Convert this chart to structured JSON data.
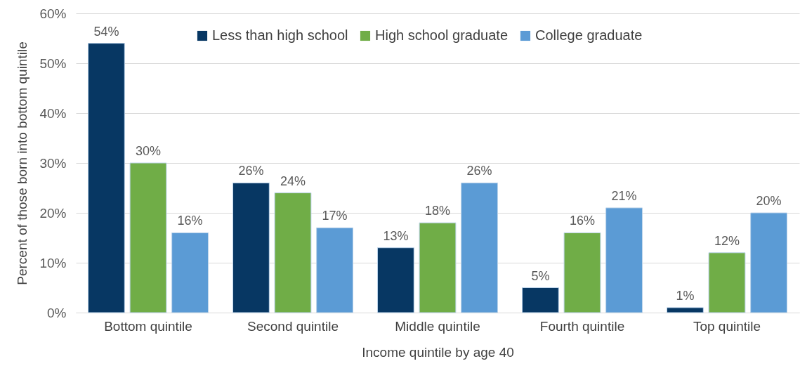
{
  "chart_data": {
    "type": "bar",
    "xlabel": "Income quintile by age 40",
    "ylabel": "Percent of those born into bottom quintile",
    "categories": [
      "Bottom quintile",
      "Second quintile",
      "Middle quintile",
      "Fourth quintile",
      "Top quintile"
    ],
    "series": [
      {
        "name": "Less than high school",
        "color": "#073763",
        "values": [
          54,
          26,
          13,
          5,
          1
        ],
        "value_labels": [
          "54%",
          "26%",
          "13%",
          "5%",
          "1%"
        ]
      },
      {
        "name": "High school graduate",
        "color": "#70ad47",
        "values": [
          30,
          24,
          18,
          16,
          12
        ],
        "value_labels": [
          "30%",
          "24%",
          "18%",
          "16%",
          "12%"
        ]
      },
      {
        "name": "College graduate",
        "color": "#5b9bd5",
        "values": [
          16,
          17,
          26,
          21,
          20
        ],
        "value_labels": [
          "16%",
          "17%",
          "26%",
          "21%",
          "20%"
        ]
      }
    ],
    "ylim": [
      0,
      60
    ],
    "yticks": [
      {
        "value": 0,
        "label": "0%"
      },
      {
        "value": 10,
        "label": "10%"
      },
      {
        "value": 20,
        "label": "20%"
      },
      {
        "value": 30,
        "label": "30%"
      },
      {
        "value": 40,
        "label": "40%"
      },
      {
        "value": 50,
        "label": "50%"
      },
      {
        "value": 60,
        "label": "60%"
      }
    ],
    "grid": "y",
    "legend": "top"
  }
}
